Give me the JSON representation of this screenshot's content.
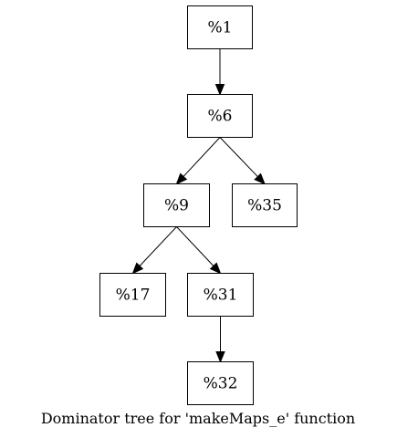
{
  "caption": "Dominator tree for 'makeMaps_e' function",
  "nodes": [
    {
      "id": "n1",
      "label": "%1"
    },
    {
      "id": "n6",
      "label": "%6"
    },
    {
      "id": "n9",
      "label": "%9"
    },
    {
      "id": "n35",
      "label": "%35"
    },
    {
      "id": "n17",
      "label": "%17"
    },
    {
      "id": "n31",
      "label": "%31"
    },
    {
      "id": "n32",
      "label": "%32"
    }
  ],
  "edges": [
    {
      "from": "n1",
      "to": "n6"
    },
    {
      "from": "n6",
      "to": "n9"
    },
    {
      "from": "n6",
      "to": "n35"
    },
    {
      "from": "n9",
      "to": "n17"
    },
    {
      "from": "n9",
      "to": "n31"
    },
    {
      "from": "n31",
      "to": "n32"
    }
  ],
  "colors": {
    "stroke": "#000000",
    "background": "#ffffff"
  }
}
